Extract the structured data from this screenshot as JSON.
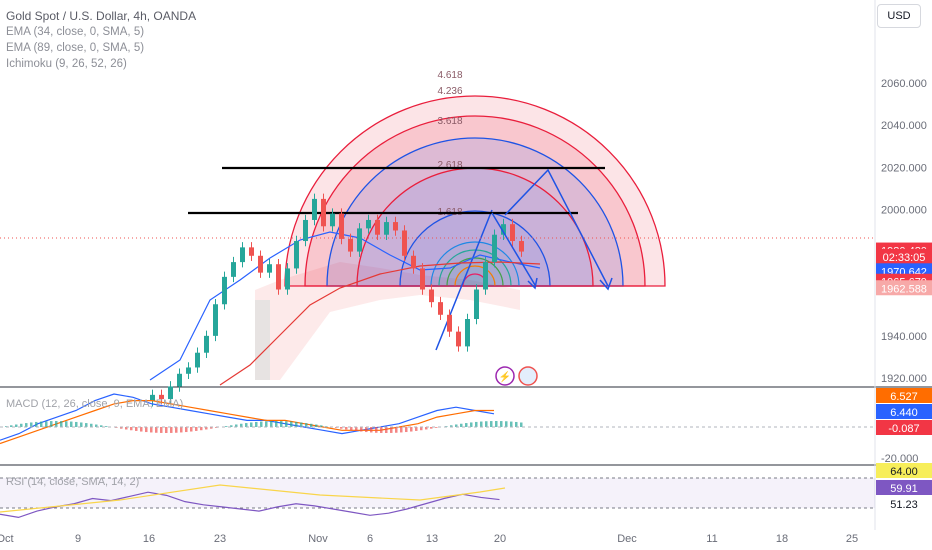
{
  "header": {
    "title": "Gold Spot / U.S. Dollar, 4h, OANDA",
    "indicators": [
      "EMA (34, close, 0, SMA, 5)",
      "EMA (89, close, 0, SMA, 5)",
      "Ichimoku (9, 26, 52, 26)"
    ],
    "currency_button": "USD"
  },
  "colors": {
    "up": "#26a69a",
    "down": "#ef5350",
    "ema34": "#2962ff",
    "ema89": "#e53935",
    "fib_red": "#e91e3c",
    "fib_blue": "#1e53e5",
    "macd": "#2962ff",
    "signal": "#ff6d00",
    "rsi": "#7e57c2"
  },
  "chart_data": [
    {
      "type": "candlestick",
      "title": "Gold Spot / U.S. Dollar, 4h, OANDA",
      "ylim": [
        1915,
        2075
      ],
      "y_ticks": [
        "1920.000",
        "1940.000",
        "2000.000",
        "2020.000",
        "2040.000",
        "2060.000"
      ],
      "x_ticks": [
        "Oct",
        "9",
        "16",
        "23",
        "Nov",
        "6",
        "13",
        "20",
        "Dec",
        "11",
        "18",
        "25"
      ],
      "close": [
        1912,
        1910,
        1916,
        1922,
        1925,
        1932,
        1940,
        1955,
        1968,
        1975,
        1982,
        1978,
        1970,
        1974,
        1962,
        1972,
        1985,
        1995,
        2005,
        1992,
        1998,
        1986,
        1980,
        1991,
        1995,
        1988,
        1994,
        1990,
        1978,
        1972,
        1962,
        1956,
        1950,
        1942,
        1935,
        1948,
        1962,
        1975,
        1988,
        1993,
        1985,
        1980
      ],
      "fib_circle_levels": [
        "1.618",
        "2.618",
        "3.618",
        "4.236",
        "4.618"
      ],
      "horizontal_lines": [
        2010,
        1991
      ],
      "price_labels": [
        {
          "text": "1980.480",
          "price": 1980.48,
          "bg": "#f23645"
        },
        {
          "text": "02:33:05",
          "price": 1977.5,
          "bg": "#f23645"
        },
        {
          "text": "1970.642",
          "price": 1970.64,
          "bg": "#2962ff"
        },
        {
          "text": "1965.679",
          "price": 1965.68,
          "bg": "#f23645"
        },
        {
          "text": "1962.588",
          "price": 1962.59,
          "bg": "#f7a9a8"
        }
      ]
    },
    {
      "type": "line",
      "title": "MACD (12, 26, close, 9, EMA, EMA)",
      "series": [
        {
          "name": "MACD",
          "values": [
            -4,
            -2,
            1,
            3,
            5,
            8,
            10,
            9,
            7,
            6,
            5,
            4,
            3,
            2,
            2,
            1,
            0,
            -1,
            -2,
            -1,
            0,
            1,
            3,
            5,
            6,
            5,
            4
          ]
        },
        {
          "name": "Signal",
          "values": [
            -5,
            -3,
            -1,
            1,
            3,
            5,
            7,
            8,
            8,
            7,
            6,
            5,
            4,
            3,
            2,
            2,
            1,
            0,
            -1,
            -1,
            -1,
            0,
            1,
            3,
            4,
            5,
            5
          ]
        }
      ],
      "y_ticks": [
        "-20.000"
      ],
      "value_labels": [
        "6.527",
        "6.440",
        "-0.087"
      ]
    },
    {
      "type": "line",
      "title": "RSI (14, close, SMA, 14, 2)",
      "series": [
        {
          "name": "RSI",
          "values": [
            45,
            42,
            48,
            52,
            55,
            60,
            58,
            62,
            66,
            63,
            57,
            54,
            52,
            50,
            48,
            52,
            55,
            53,
            50,
            47,
            44,
            46,
            50,
            55,
            60,
            64,
            61,
            59
          ]
        }
      ],
      "value_labels": [
        "64.00",
        "59.91",
        "51.23"
      ]
    }
  ]
}
